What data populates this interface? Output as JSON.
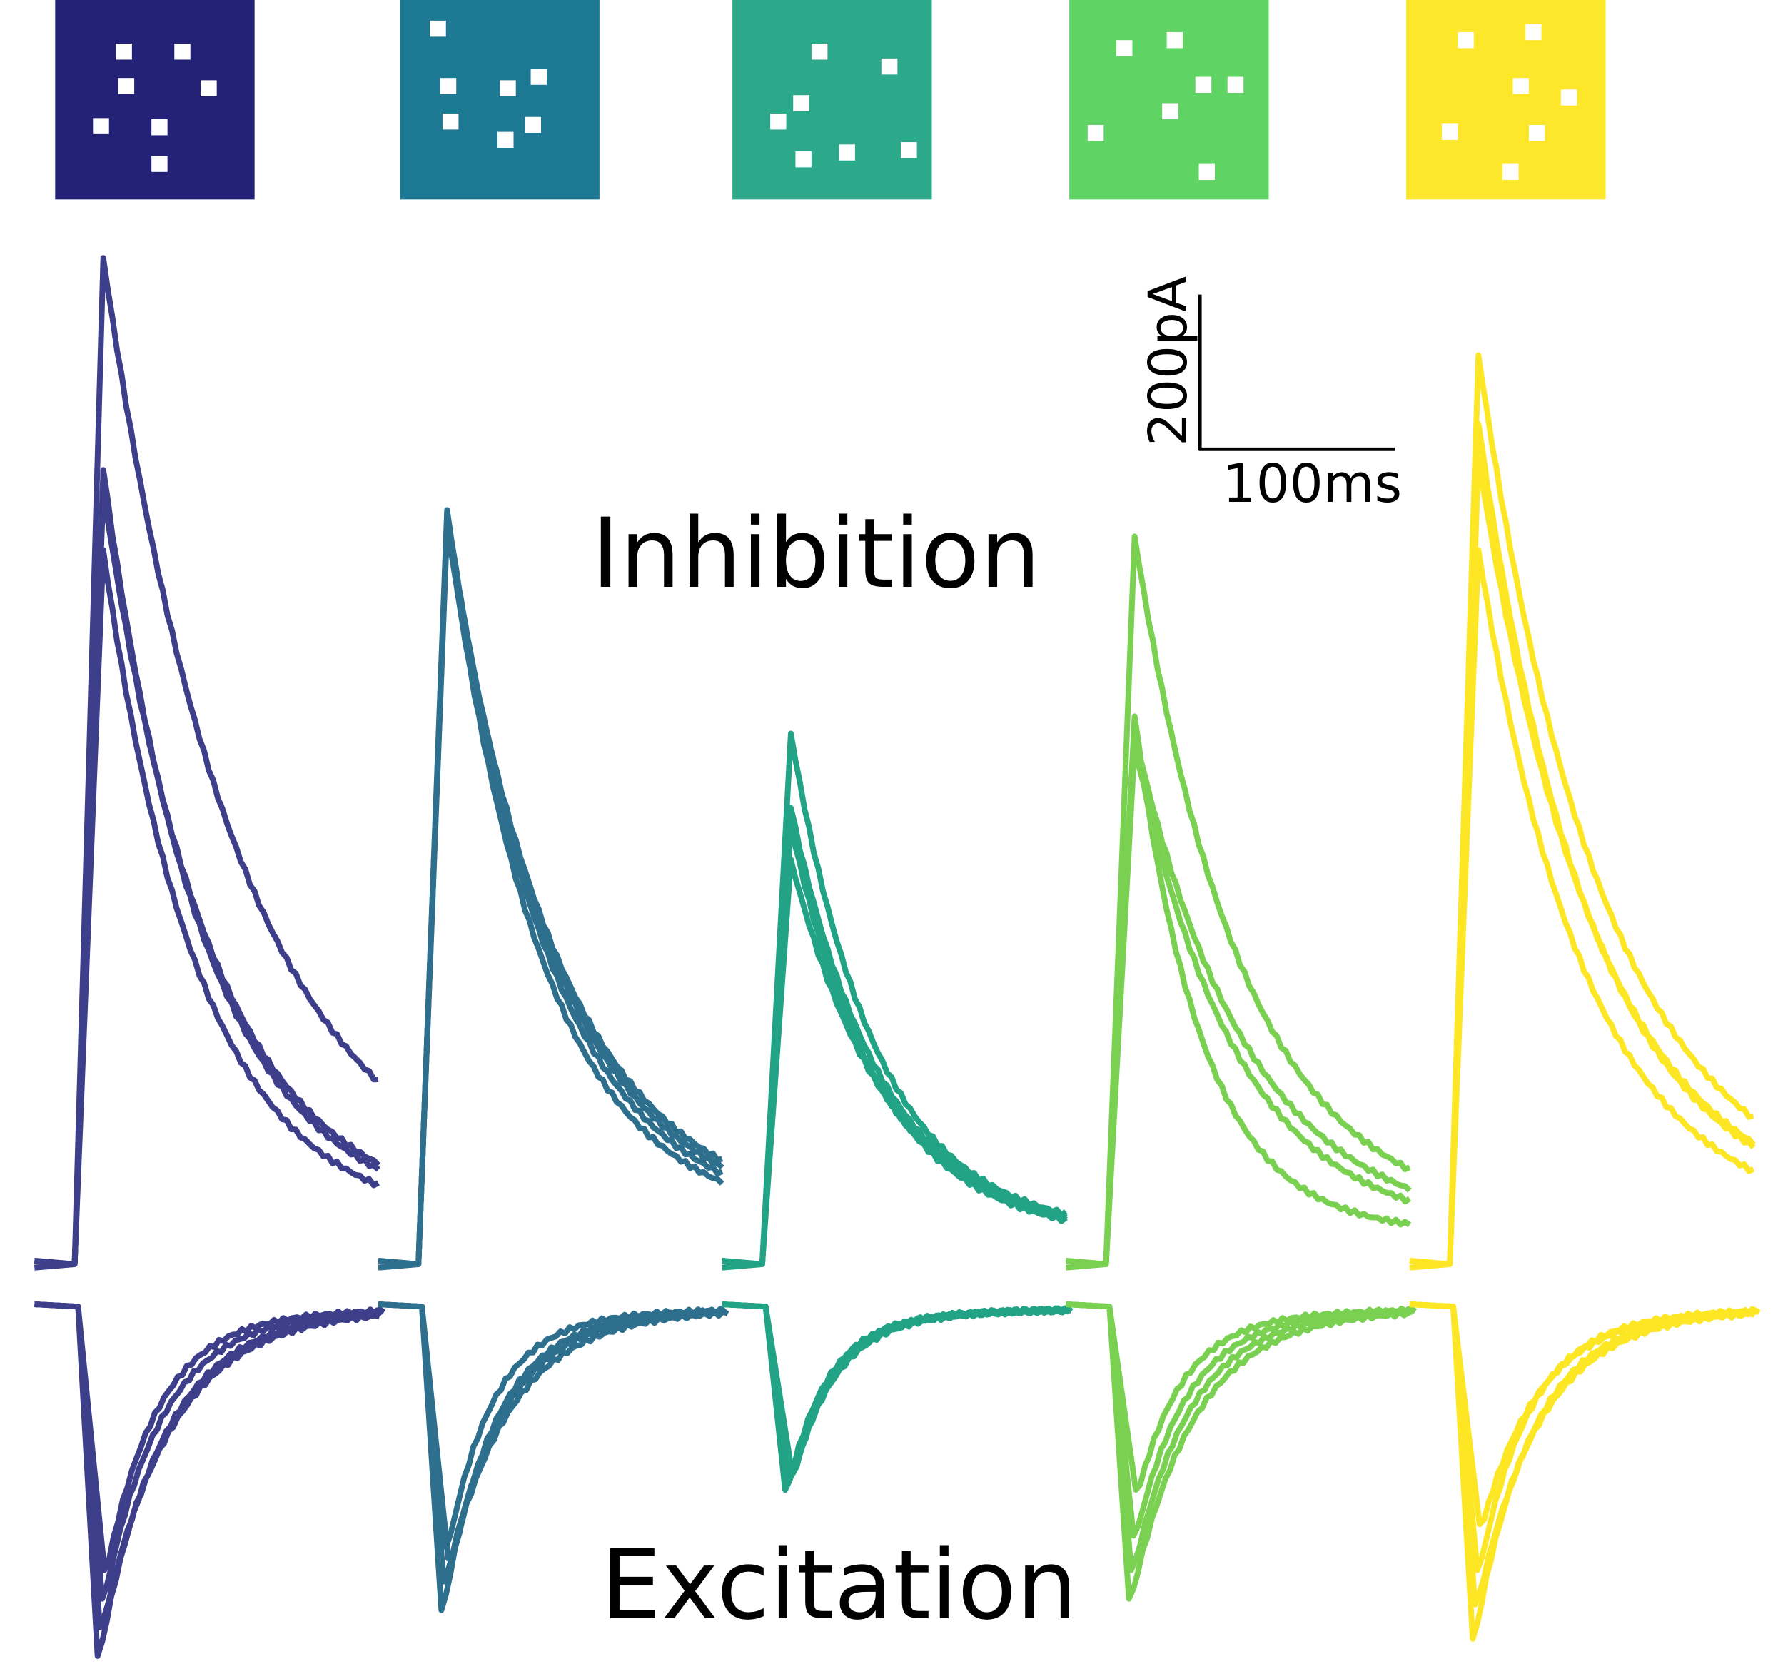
{
  "labels": {
    "inhibition": "Inhibition",
    "excitation": "Excitation"
  },
  "scale_bar": {
    "current": "200pA",
    "time": "100ms"
  }
}
